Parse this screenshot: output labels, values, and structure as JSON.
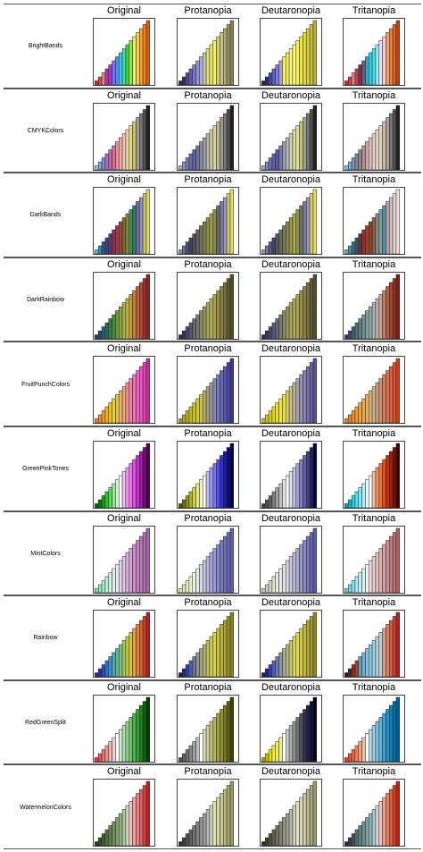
{
  "panel_titles": [
    "Original",
    "Protanopia",
    "Deutaronopia",
    "Tritanopia"
  ],
  "chart_data": {
    "type": "bar",
    "description_of_values": "Each panel shows an increasing staircase of 16 bars, one bar per palette color.",
    "values": [
      1,
      2,
      3,
      4,
      5,
      6,
      7,
      8,
      9,
      10,
      11,
      12,
      13,
      14,
      15,
      16
    ],
    "ylim": [
      0,
      16
    ],
    "grid": false,
    "palettes": [
      {
        "name": "BrightBands",
        "panels": [
          [
            "#e41a1c",
            "#d3464c",
            "#e08585",
            "#b9329c",
            "#9a3bd0",
            "#7a6ff0",
            "#4a8ef5",
            "#3cc3f0",
            "#3fe0a8",
            "#3fd23a",
            "#8fe04a",
            "#e0f07a",
            "#f5d040",
            "#f5a030",
            "#f08020",
            "#d85c10"
          ],
          [
            "#2b2f4a",
            "#30335a",
            "#4a4f8a",
            "#5a5ea8",
            "#7378c8",
            "#8f92d8",
            "#a8aad8",
            "#c8c8b0",
            "#e0e080",
            "#e8e860",
            "#f0f060",
            "#d0d070",
            "#c8c090",
            "#b0ac70",
            "#989060",
            "#888050"
          ],
          [
            "#202050",
            "#2a2a70",
            "#4848a0",
            "#6060c0",
            "#7c7ce0",
            "#a0a0e0",
            "#f0f060",
            "#f5f060",
            "#f8f870",
            "#fafa80",
            "#f5f050",
            "#f0e840",
            "#e0d840",
            "#d8d040",
            "#c8c040",
            "#b8b040"
          ],
          [
            "#e02020",
            "#d04050",
            "#e08080",
            "#c04060",
            "#803040",
            "#606080",
            "#40a0c0",
            "#30d0e0",
            "#40e0f0",
            "#a0e8f0",
            "#e0e0f0",
            "#f0d0e0",
            "#f0a060",
            "#f08040",
            "#e06020",
            "#c04010"
          ]
        ]
      },
      {
        "name": "CMYKColors",
        "panels": [
          [
            "#7fc8f0",
            "#78a8d8",
            "#8a84c8",
            "#a070b8",
            "#c064a8",
            "#d86c90",
            "#e88c90",
            "#f0a8a8",
            "#f0c8b0",
            "#e8d8a0",
            "#e0d880",
            "#c8c070",
            "#a0a088",
            "#787878",
            "#505050",
            "#202020"
          ],
          [
            "#a8a8d8",
            "#9090c8",
            "#7878b8",
            "#6868a8",
            "#6060a0",
            "#707098",
            "#8888a0",
            "#a0a0a8",
            "#b8b8a8",
            "#c8c8a0",
            "#d0d0a0",
            "#c0b890",
            "#989890",
            "#787878",
            "#505050",
            "#202020"
          ],
          [
            "#a0a0d8",
            "#8888c8",
            "#7070b0",
            "#6060a0",
            "#5858a0",
            "#7878a8",
            "#9898b0",
            "#b8b8b8",
            "#d0d0b0",
            "#d8d8a0",
            "#e0e090",
            "#c8c080",
            "#a0a090",
            "#787878",
            "#505050",
            "#202020"
          ],
          [
            "#80c8e0",
            "#78b0d0",
            "#7898b8",
            "#8080a0",
            "#908088",
            "#b0908c",
            "#c8a8a8",
            "#e0c0c0",
            "#e8d0c8",
            "#e0d8c8",
            "#e0d0b8",
            "#d0b8a0",
            "#a8a0a0",
            "#787878",
            "#505050",
            "#202020"
          ]
        ]
      },
      {
        "name": "DarkBands",
        "panels": [
          [
            "#5ab4ac",
            "#3a8aa8",
            "#2a5a8a",
            "#404080",
            "#603870",
            "#883058",
            "#a03848",
            "#984838",
            "#7a6838",
            "#808838",
            "#4a8a4a",
            "#2a7a6a",
            "#6a6aa0",
            "#9090c0",
            "#c8c860",
            "#e0d870"
          ],
          [
            "#9090a8",
            "#707088",
            "#505070",
            "#404060",
            "#505060",
            "#606060",
            "#707058",
            "#808050",
            "#909048",
            "#a0a048",
            "#8a8a50",
            "#6a6a60",
            "#7878a0",
            "#9898c0",
            "#d0d060",
            "#e0d870"
          ],
          [
            "#9898b0",
            "#787890",
            "#585878",
            "#404060",
            "#505860",
            "#686860",
            "#787858",
            "#888850",
            "#989848",
            "#a8a848",
            "#909050",
            "#707060",
            "#7878a0",
            "#9898c0",
            "#d8d060",
            "#e8d870"
          ],
          [
            "#70a8b0",
            "#5090a0",
            "#307080",
            "#305868",
            "#6a3040",
            "#903028",
            "#a04020",
            "#904030",
            "#806058",
            "#908878",
            "#70a0a8",
            "#5890a0",
            "#b0a0a8",
            "#d0c0c8",
            "#e8d8d0",
            "#f0e0d8"
          ]
        ]
      },
      {
        "name": "DarkRainbow",
        "panels": [
          [
            "#2a3a6a",
            "#284a7a",
            "#2a6070",
            "#2a6a5a",
            "#3a7a4a",
            "#4a8a3a",
            "#6a9a3a",
            "#8aa83a",
            "#a8b04a",
            "#c0b04a",
            "#c09a3a",
            "#c0803a",
            "#b8603a",
            "#b04838",
            "#a03030",
            "#802828"
          ],
          [
            "#303050",
            "#383860",
            "#484868",
            "#585870",
            "#686870",
            "#787870",
            "#888868",
            "#989860",
            "#a8a858",
            "#b0b058",
            "#a8a050",
            "#989048",
            "#888040",
            "#787038",
            "#605830",
            "#505028"
          ],
          [
            "#303058",
            "#383868",
            "#484870",
            "#585878",
            "#686870",
            "#787870",
            "#888868",
            "#989860",
            "#a8a858",
            "#b0a858",
            "#a8a050",
            "#989048",
            "#888048",
            "#787040",
            "#605838",
            "#505030"
          ],
          [
            "#304058",
            "#385068",
            "#406070",
            "#507078",
            "#608080",
            "#709088",
            "#80a0a0",
            "#90a8a8",
            "#b0b0b0",
            "#c0b0a8",
            "#c0a098",
            "#b88068",
            "#b06040",
            "#a04830",
            "#903020",
            "#802010"
          ]
        ]
      },
      {
        "name": "FruitPunchColors",
        "panels": [
          [
            "#f08030",
            "#f09030",
            "#f0a020",
            "#f0b020",
            "#f0c020",
            "#e8d030",
            "#e0c048",
            "#e8b868",
            "#f0a878",
            "#f09090",
            "#f080a8",
            "#f070b8",
            "#f060c0",
            "#f050c8",
            "#e040b0",
            "#c83090"
          ],
          [
            "#a8a030",
            "#b0a830",
            "#b8b020",
            "#c0b820",
            "#c8c028",
            "#d0c830",
            "#c8c048",
            "#b8b068",
            "#a8a080",
            "#9898a0",
            "#8888b0",
            "#7878b8",
            "#6868b8",
            "#5858b0",
            "#4848a0",
            "#383890"
          ],
          [
            "#c8c028",
            "#d0c830",
            "#d8d020",
            "#e0d820",
            "#e8e028",
            "#f0e830",
            "#e8e048",
            "#d8d068",
            "#c8c080",
            "#b8b098",
            "#a8a0a8",
            "#9890b0",
            "#8880b0",
            "#7870a8",
            "#6860a0",
            "#585090"
          ],
          [
            "#f08020",
            "#f08828",
            "#f09030",
            "#f09838",
            "#f0a040",
            "#e8a848",
            "#e0b060",
            "#d8b878",
            "#d0b090",
            "#c8a080",
            "#c89070",
            "#d08060",
            "#d87050",
            "#e06040",
            "#e05030",
            "#d04020"
          ]
        ]
      },
      {
        "name": "GreenPinkTones",
        "panels": [
          [
            "#006000",
            "#008000",
            "#10a010",
            "#30c030",
            "#60d860",
            "#98e898",
            "#d0f0d0",
            "#ffffff",
            "#f0c0f0",
            "#f098f0",
            "#f070f0",
            "#e050e8",
            "#c030c8",
            "#a018a8",
            "#780878",
            "#500050"
          ],
          [
            "#505000",
            "#707010",
            "#909020",
            "#b0b030",
            "#d0d040",
            "#e8e880",
            "#f0f0c0",
            "#ffffff",
            "#c0c0f0",
            "#9898f0",
            "#7070f0",
            "#5050e8",
            "#3030c8",
            "#1818a8",
            "#080878",
            "#000050"
          ],
          [
            "#404040",
            "#505050",
            "#606060",
            "#808080",
            "#a0a0a0",
            "#c0c0c0",
            "#e0e0e0",
            "#ffffff",
            "#e0e0f0",
            "#c0c0e0",
            "#a0a0d0",
            "#8080c0",
            "#6060a0",
            "#404080",
            "#202060",
            "#000040"
          ],
          [
            "#00a0c0",
            "#10b8d0",
            "#30d0e0",
            "#50e0f0",
            "#80e8f0",
            "#b0f0f8",
            "#e0f8ff",
            "#ffffff",
            "#f8c0a0",
            "#f09060",
            "#f07030",
            "#e05010",
            "#c03000",
            "#a02000",
            "#701000",
            "#400000"
          ]
        ]
      },
      {
        "name": "MintColors",
        "panels": [
          [
            "#70e0a0",
            "#88e8b0",
            "#a0f0c0",
            "#b8f0d0",
            "#d0f0e0",
            "#e0f0e8",
            "#e8e8f0",
            "#e0d8e8",
            "#e0c8e0",
            "#d8b0d8",
            "#d0a0d0",
            "#c890c8",
            "#c080c0",
            "#b878b8",
            "#b070b0",
            "#a868a8"
          ],
          [
            "#e8e8a0",
            "#e8e8b0",
            "#f0f0c0",
            "#f0f0d0",
            "#f0f0e0",
            "#e8e8e8",
            "#d8d8e8",
            "#c8c8e0",
            "#b8b8e0",
            "#a8a8d8",
            "#9898d0",
            "#8888c8",
            "#7878c0",
            "#7070b8",
            "#6868b0",
            "#6060a8"
          ],
          [
            "#c8c8b8",
            "#d0d0c0",
            "#d8d8c8",
            "#e0e0d0",
            "#e8e8e0",
            "#e8e8e8",
            "#e0e0e8",
            "#d8d8e0",
            "#c8c8e0",
            "#b8b8d8",
            "#a8a8d0",
            "#9898c8",
            "#8888c0",
            "#7878b8",
            "#6868b0",
            "#5858a8"
          ],
          [
            "#60d0e0",
            "#78d8e8",
            "#90e0f0",
            "#a8e8f0",
            "#c0f0f8",
            "#d8f0f8",
            "#f0f0f0",
            "#f0e0e0",
            "#e8d0d0",
            "#e0c0c0",
            "#d8b0b0",
            "#d0a0a0",
            "#c89090",
            "#c08080",
            "#b87070",
            "#b06060"
          ]
        ]
      },
      {
        "name": "Rainbow",
        "panels": [
          [
            "#502080",
            "#3030a0",
            "#2050c0",
            "#3070c8",
            "#4090c0",
            "#50a8b0",
            "#60b898",
            "#80c080",
            "#a0c860",
            "#c0c840",
            "#d8c040",
            "#e0a040",
            "#e08038",
            "#d86030",
            "#c84028",
            "#b02020"
          ],
          [
            "#202050",
            "#202880",
            "#3040a0",
            "#5060a8",
            "#7070a0",
            "#909090",
            "#a0a080",
            "#b0b070",
            "#c0c060",
            "#d0d050",
            "#d8d048",
            "#c8c040",
            "#b8b038",
            "#a8a030",
            "#989028",
            "#888020"
          ],
          [
            "#202050",
            "#202890",
            "#3040b0",
            "#5060b8",
            "#7078b0",
            "#9090a0",
            "#a8a890",
            "#b8b880",
            "#c8c870",
            "#d8d860",
            "#e0d850",
            "#d0c848",
            "#c0b840",
            "#b0a838",
            "#a09830",
            "#908828"
          ],
          [
            "#301010",
            "#502020",
            "#803020",
            "#a04020",
            "#60a0c0",
            "#70b0d0",
            "#80c0e0",
            "#90c8e0",
            "#a0d0e8",
            "#b0d0e0",
            "#c0c8d0",
            "#d0a090",
            "#d88060",
            "#d86040",
            "#c84030",
            "#b02020"
          ]
        ]
      },
      {
        "name": "RedGreenSplit",
        "panels": [
          [
            "#f03030",
            "#f05050",
            "#f07070",
            "#f09090",
            "#f0b0b0",
            "#f0d0d0",
            "#ffffff",
            "#d0f0d0",
            "#b0e0b0",
            "#90d090",
            "#70c070",
            "#50b050",
            "#30a030",
            "#208020",
            "#106010",
            "#004000"
          ],
          [
            "#505050",
            "#606060",
            "#707070",
            "#888888",
            "#a0a0a0",
            "#c0c0c0",
            "#ffffff",
            "#e0e0c0",
            "#d0d0a0",
            "#c0c080",
            "#b0b060",
            "#a0a040",
            "#909030",
            "#787820",
            "#606010",
            "#404000"
          ],
          [
            "#a0a000",
            "#c0c000",
            "#e0e000",
            "#f0f030",
            "#f0f060",
            "#f0f090",
            "#ffffff",
            "#d0d0d0",
            "#b0b0b0",
            "#909090",
            "#707070",
            "#505060",
            "#303050",
            "#202040",
            "#101030",
            "#000020"
          ],
          [
            "#f04020",
            "#f05030",
            "#f06040",
            "#f08060",
            "#f0a080",
            "#f0c0a0",
            "#ffffff",
            "#c0e0f0",
            "#a0d0e8",
            "#80c0e0",
            "#60b0d8",
            "#40a0d0",
            "#2090c8",
            "#1080b8",
            "#0070a8",
            "#006098"
          ]
        ]
      },
      {
        "name": "WatermelonColors",
        "panels": [
          [
            "#204010",
            "#305020",
            "#406030",
            "#507040",
            "#608050",
            "#709060",
            "#80a070",
            "#90b080",
            "#b0c8a0",
            "#d0d8c0",
            "#f0c0c0",
            "#f0a0a0",
            "#e88080",
            "#e06060",
            "#d84040",
            "#c02020"
          ],
          [
            "#303030",
            "#404040",
            "#505050",
            "#606060",
            "#707070",
            "#808080",
            "#909090",
            "#a0a0a0",
            "#b8b8b0",
            "#d0d0c0",
            "#e0e0b0",
            "#d8d8a0",
            "#c8c890",
            "#b8b880",
            "#a8a870",
            "#989860"
          ],
          [
            "#303020",
            "#404030",
            "#505040",
            "#606050",
            "#707060",
            "#808070",
            "#909080",
            "#a0a090",
            "#b8b8a8",
            "#d0d0c0",
            "#e0e0c8",
            "#d8d8b0",
            "#c8c8a0",
            "#b8b890",
            "#a8a880",
            "#989870"
          ],
          [
            "#203040",
            "#304050",
            "#405060",
            "#507070",
            "#608080",
            "#709090",
            "#80a0a8",
            "#90b0b8",
            "#b0c8d0",
            "#d0d8e0",
            "#f0c0c0",
            "#f0a090",
            "#e88060",
            "#e06040",
            "#d84020",
            "#c02010"
          ]
        ]
      }
    ]
  }
}
